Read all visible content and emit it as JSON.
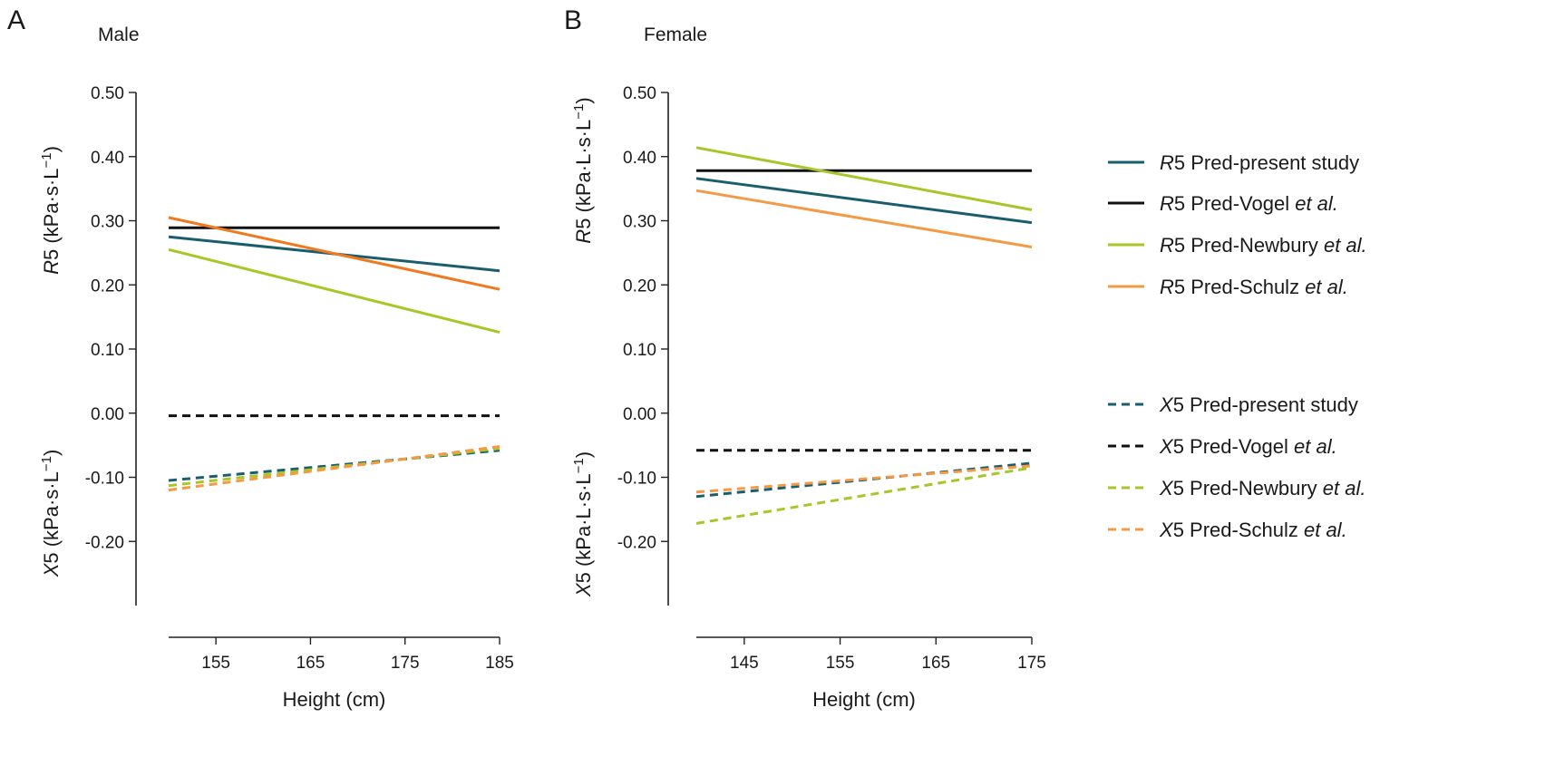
{
  "colors": {
    "present_study": "#1a5e6e",
    "vogel": "#111111",
    "newbury": "#a8c627",
    "schulz_male": "#f0781f",
    "schulz_female": "#f49a45"
  },
  "legend": [
    {
      "sym": "R",
      "rest": "5 Pred-present study",
      "etal": "",
      "style": "solid",
      "color": "#1a5e6e"
    },
    {
      "sym": "R",
      "rest": "5 Pred-Vogel ",
      "etal": "et al.",
      "style": "solid",
      "color": "#111111"
    },
    {
      "sym": "R",
      "rest": "5 Pred-Newbury ",
      "etal": "et al.",
      "style": "solid",
      "color": "#a8c627"
    },
    {
      "sym": "R",
      "rest": "5 Pred-Schulz ",
      "etal": "et al.",
      "style": "solid",
      "color": "#f49a45"
    },
    {
      "sym": "X",
      "rest": "5 Pred-present study",
      "etal": "",
      "style": "dashed",
      "color": "#1a5e6e"
    },
    {
      "sym": "X",
      "rest": "5 Pred-Vogel ",
      "etal": "et al.",
      "style": "dashed",
      "color": "#111111"
    },
    {
      "sym": "X",
      "rest": "5 Pred-Newbury ",
      "etal": "et al.",
      "style": "dashed",
      "color": "#a8c627"
    },
    {
      "sym": "X",
      "rest": "5 Pred-Schulz ",
      "etal": "et al.",
      "style": "dashed",
      "color": "#f49a45"
    }
  ],
  "chart_data": [
    {
      "type": "line",
      "panel": "A",
      "title": "Male",
      "xlabel": "Height (cm)",
      "ylabel_r5": {
        "sym": "R",
        "rest": "5 (kPa·s·L",
        "sup": "−1",
        "close": ")"
      },
      "ylabel_x5": {
        "sym": "X",
        "rest": "5 (kPa·s·L",
        "sup": "−1",
        "close": ")"
      },
      "xlim": [
        150,
        185
      ],
      "ylim": [
        -0.3,
        0.5
      ],
      "xticks": [
        155,
        165,
        175,
        185
      ],
      "yticks": [
        "0.50",
        "0.40",
        "0.30",
        "0.20",
        "0.10",
        "0.00",
        "-0.10",
        "-0.20"
      ],
      "series": [
        {
          "name": "R5 Pred-present study",
          "style": "solid",
          "color": "#1a5e6e",
          "x": [
            150,
            185
          ],
          "y": [
            0.275,
            0.222
          ]
        },
        {
          "name": "R5 Pred-Vogel et al.",
          "style": "solid",
          "color": "#111111",
          "x": [
            150,
            185
          ],
          "y": [
            0.289,
            0.289
          ]
        },
        {
          "name": "R5 Pred-Newbury et al.",
          "style": "solid",
          "color": "#a8c627",
          "x": [
            150,
            185
          ],
          "y": [
            0.255,
            0.126
          ]
        },
        {
          "name": "R5 Pred-Schulz et al.",
          "style": "solid",
          "color": "#f0781f",
          "x": [
            150,
            185
          ],
          "y": [
            0.305,
            0.193
          ]
        },
        {
          "name": "X5 Pred-present study",
          "style": "dashed",
          "color": "#1a5e6e",
          "x": [
            150,
            185
          ],
          "y": [
            -0.105,
            -0.058
          ]
        },
        {
          "name": "X5 Pred-Vogel et al.",
          "style": "dashed",
          "color": "#111111",
          "x": [
            150,
            185
          ],
          "y": [
            -0.004,
            -0.004
          ]
        },
        {
          "name": "X5 Pred-Newbury et al.",
          "style": "dashed",
          "color": "#a8c627",
          "x": [
            150,
            185
          ],
          "y": [
            -0.113,
            -0.055
          ]
        },
        {
          "name": "X5 Pred-Schulz et al.",
          "style": "dashed",
          "color": "#f49a45",
          "x": [
            150,
            185
          ],
          "y": [
            -0.12,
            -0.052
          ]
        }
      ]
    },
    {
      "type": "line",
      "panel": "B",
      "title": "Female",
      "xlabel": "Height (cm)",
      "ylabel_r5": {
        "sym": "R",
        "rest": "5 (kPa·L·s·L",
        "sup": "−1",
        "close": ")"
      },
      "ylabel_x5": {
        "sym": "X",
        "rest": "5 (kPa·L·s·L",
        "sup": "−1",
        "close": ")"
      },
      "xlim": [
        140,
        175
      ],
      "ylim": [
        -0.3,
        0.5
      ],
      "xticks": [
        145,
        155,
        165,
        175
      ],
      "yticks": [
        "0.50",
        "0.40",
        "0.30",
        "0.20",
        "0.10",
        "0.00",
        "-0.10",
        "-0.20"
      ],
      "series": [
        {
          "name": "R5 Pred-present study",
          "style": "solid",
          "color": "#1a5e6e",
          "x": [
            140,
            175
          ],
          "y": [
            0.366,
            0.297
          ]
        },
        {
          "name": "R5 Pred-Vogel et al.",
          "style": "solid",
          "color": "#111111",
          "x": [
            140,
            175
          ],
          "y": [
            0.378,
            0.378
          ]
        },
        {
          "name": "R5 Pred-Newbury et al.",
          "style": "solid",
          "color": "#a8c627",
          "x": [
            140,
            175
          ],
          "y": [
            0.414,
            0.317
          ]
        },
        {
          "name": "R5 Pred-Schulz et al.",
          "style": "solid",
          "color": "#f49a45",
          "x": [
            140,
            175
          ],
          "y": [
            0.347,
            0.259
          ]
        },
        {
          "name": "X5 Pred-present study",
          "style": "dashed",
          "color": "#1a5e6e",
          "x": [
            140,
            175
          ],
          "y": [
            -0.13,
            -0.078
          ]
        },
        {
          "name": "X5 Pred-Vogel et al.",
          "style": "dashed",
          "color": "#111111",
          "x": [
            140,
            175
          ],
          "y": [
            -0.058,
            -0.058
          ]
        },
        {
          "name": "X5 Pred-Newbury et al.",
          "style": "dashed",
          "color": "#a8c627",
          "x": [
            140,
            175
          ],
          "y": [
            -0.172,
            -0.085
          ]
        },
        {
          "name": "X5 Pred-Schulz et al.",
          "style": "dashed",
          "color": "#f49a45",
          "x": [
            140,
            175
          ],
          "y": [
            -0.123,
            -0.082
          ]
        }
      ]
    }
  ]
}
